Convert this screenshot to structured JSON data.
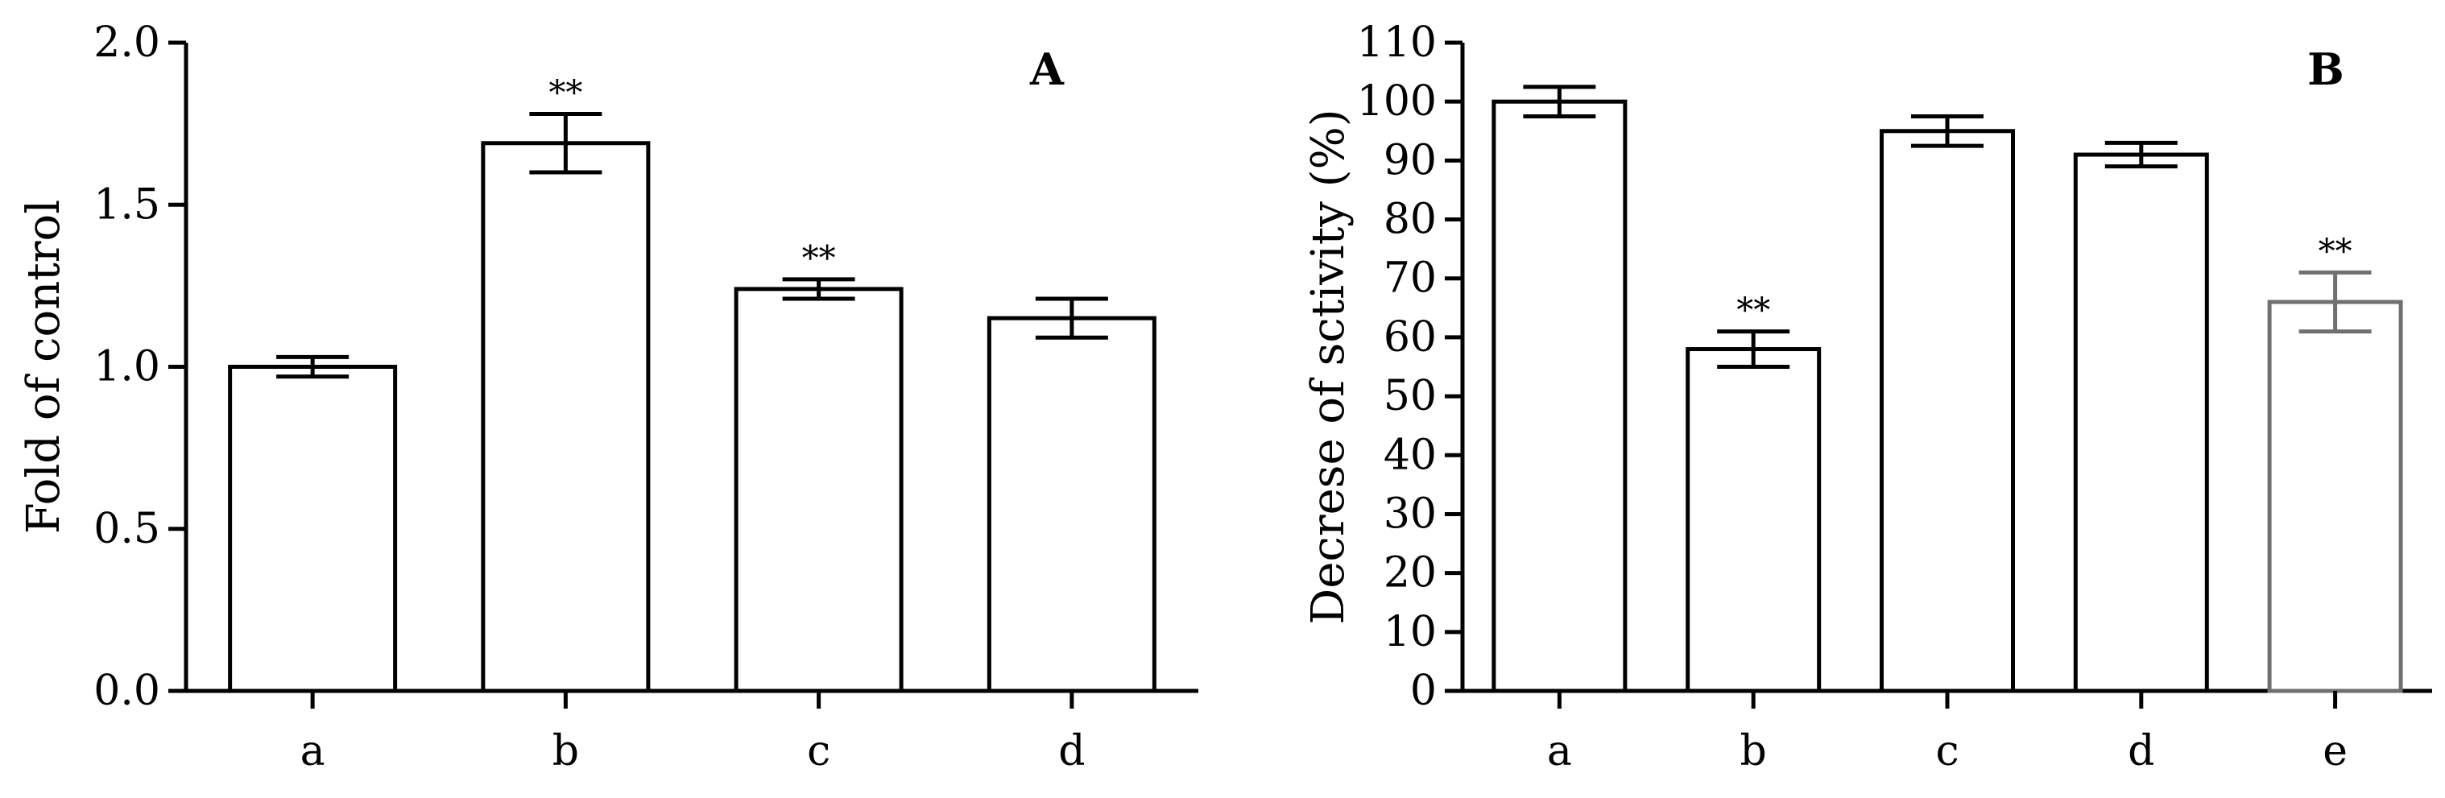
{
  "chart_data": [
    {
      "type": "bar",
      "panel_label": "A",
      "title": "",
      "xlabel": "",
      "ylabel": "Fold of control",
      "categories": [
        "a",
        "b",
        "c",
        "d"
      ],
      "values": [
        1.0,
        1.69,
        1.24,
        1.15
      ],
      "errors": [
        0.03,
        0.09,
        0.03,
        0.06
      ],
      "annotations": [
        "",
        "**",
        "**",
        ""
      ],
      "ylim": [
        0,
        2.0
      ],
      "yticks": [
        "0.0",
        "0.5",
        "1.0",
        "1.5",
        "2.0"
      ],
      "bar_colors": [
        "#000000",
        "#000000",
        "#000000",
        "#000000"
      ],
      "grid": false,
      "legend": "none"
    },
    {
      "type": "bar",
      "panel_label": "B",
      "title": "",
      "xlabel": "",
      "ylabel": "Decrese of sctivity (%)",
      "categories": [
        "a",
        "b",
        "c",
        "d",
        "e"
      ],
      "values": [
        100,
        58,
        95,
        91,
        66
      ],
      "errors": [
        2.5,
        3,
        2.5,
        2,
        5
      ],
      "annotations": [
        "",
        "**",
        "",
        "",
        "**"
      ],
      "ylim": [
        0,
        110
      ],
      "yticks": [
        "0",
        "10",
        "20",
        "30",
        "40",
        "50",
        "60",
        "70",
        "80",
        "90",
        "100",
        "110"
      ],
      "bar_colors": [
        "#000000",
        "#000000",
        "#000000",
        "#000000",
        "#707070"
      ],
      "grid": false,
      "legend": "none"
    }
  ]
}
